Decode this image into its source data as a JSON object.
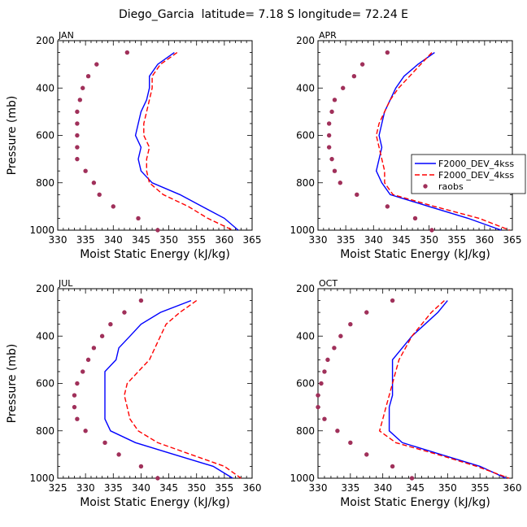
{
  "figure": {
    "title": "Diego_Garcia  latitude= 7.18 S longitude= 72.24 E"
  },
  "colors": {
    "model1": "#0000ff",
    "model2": "#ff0000",
    "raobs": "#a0305a"
  },
  "legend": {
    "panel": "APR",
    "entries": [
      "F2000_DEV_4kss",
      "F2000_DEV_4kss",
      "raobs"
    ]
  },
  "chart_data": [
    {
      "type": "line",
      "title": "JAN",
      "xlabel": "Moist Static Energy (kJ/kg)",
      "ylabel": "Pressure (mb)",
      "xlim": [
        330,
        365
      ],
      "ylim": [
        1000,
        200
      ],
      "xticks": [
        330,
        335,
        340,
        345,
        350,
        355,
        360,
        365
      ],
      "yticks": [
        200,
        400,
        600,
        800,
        1000
      ],
      "series": [
        {
          "name": "F2000_DEV_4kss",
          "style": "solid",
          "x": [
            351,
            348,
            346.5,
            346.5,
            346,
            345,
            344.5,
            344,
            345,
            344.5,
            345,
            347,
            352,
            356,
            360,
            362.5
          ],
          "y": [
            250,
            300,
            350,
            400,
            450,
            500,
            550,
            600,
            650,
            700,
            750,
            800,
            850,
            900,
            950,
            1000
          ]
        },
        {
          "name": "F2000_DEV_4kss",
          "style": "dashed",
          "x": [
            351.5,
            348.5,
            347,
            347,
            346.5,
            346,
            345.5,
            345.5,
            346.5,
            346,
            346,
            346.5,
            349,
            353.5,
            357,
            361.5
          ],
          "y": [
            250,
            300,
            350,
            400,
            450,
            500,
            550,
            600,
            650,
            700,
            750,
            800,
            850,
            900,
            950,
            1000
          ]
        },
        {
          "name": "raobs",
          "style": "markers",
          "x": [
            342.5,
            337,
            335.5,
            334.5,
            334,
            333.5,
            333.5,
            333.5,
            333.5,
            333.5,
            335,
            336.5,
            337.5,
            340,
            344.5,
            348
          ],
          "y": [
            250,
            300,
            350,
            400,
            450,
            500,
            550,
            600,
            650,
            700,
            750,
            800,
            850,
            900,
            950,
            1000
          ]
        }
      ]
    },
    {
      "type": "line",
      "title": "APR",
      "xlabel": "Moist Static Energy (kJ/kg)",
      "ylabel": "",
      "xlim": [
        330,
        365
      ],
      "ylim": [
        1000,
        200
      ],
      "xticks": [
        330,
        335,
        340,
        345,
        350,
        355,
        360,
        365
      ],
      "yticks": [
        200,
        400,
        600,
        800,
        1000
      ],
      "series": [
        {
          "name": "F2000_DEV_4kss",
          "style": "solid",
          "x": [
            351,
            348,
            345.5,
            344,
            343,
            342,
            341.5,
            341,
            341.5,
            341,
            340.5,
            341.5,
            343,
            350,
            357,
            363
          ],
          "y": [
            250,
            300,
            350,
            400,
            450,
            500,
            550,
            600,
            650,
            700,
            750,
            800,
            850,
            900,
            950,
            1000
          ]
        },
        {
          "name": "F2000_DEV_4kss",
          "style": "dashed",
          "x": [
            350.5,
            348.5,
            346.5,
            344.5,
            343,
            342,
            341,
            340.5,
            341,
            341.5,
            342,
            342,
            343.5,
            351,
            359,
            364.5
          ],
          "y": [
            250,
            300,
            350,
            400,
            450,
            500,
            550,
            600,
            650,
            700,
            750,
            800,
            850,
            900,
            950,
            1000
          ]
        },
        {
          "name": "raobs",
          "style": "markers",
          "x": [
            342.5,
            338,
            336.5,
            334.5,
            333,
            332.5,
            332,
            332,
            332,
            332.5,
            333,
            334,
            337,
            342.5,
            347.5,
            350.5
          ],
          "y": [
            250,
            300,
            350,
            400,
            450,
            500,
            550,
            600,
            650,
            700,
            750,
            800,
            850,
            900,
            950,
            1000
          ]
        }
      ]
    },
    {
      "type": "line",
      "title": "JUL",
      "xlabel": "Moist Static Energy (kJ/kg)",
      "ylabel": "Pressure (mb)",
      "xlim": [
        325,
        360
      ],
      "ylim": [
        1000,
        200
      ],
      "xticks": [
        325,
        330,
        335,
        340,
        345,
        350,
        355,
        360
      ],
      "yticks": [
        200,
        400,
        600,
        800,
        1000
      ],
      "series": [
        {
          "name": "F2000_DEV_4kss",
          "style": "solid",
          "x": [
            349,
            343.5,
            340,
            338,
            336,
            335.5,
            333.5,
            333.5,
            333.5,
            333.5,
            333.5,
            334.5,
            339,
            346,
            353,
            356.5
          ],
          "y": [
            250,
            300,
            350,
            400,
            450,
            500,
            550,
            600,
            650,
            700,
            750,
            800,
            850,
            900,
            950,
            1000
          ]
        },
        {
          "name": "F2000_DEV_4kss",
          "style": "dashed",
          "x": [
            350,
            347,
            344.5,
            343.5,
            342.5,
            341.5,
            339.5,
            337.5,
            337,
            337.5,
            338,
            339.5,
            343,
            349,
            355,
            358
          ],
          "y": [
            250,
            300,
            350,
            400,
            450,
            500,
            550,
            600,
            650,
            700,
            750,
            800,
            850,
            900,
            950,
            1000
          ]
        },
        {
          "name": "raobs",
          "style": "markers",
          "x": [
            340,
            337,
            334.5,
            333,
            331.5,
            330.5,
            329.5,
            328.5,
            328,
            328,
            328.5,
            330,
            333.5,
            336,
            340,
            343
          ],
          "y": [
            250,
            300,
            350,
            400,
            450,
            500,
            550,
            600,
            650,
            700,
            750,
            800,
            850,
            900,
            950,
            1000
          ]
        }
      ]
    },
    {
      "type": "line",
      "title": "OCT",
      "xlabel": "Moist Static Energy (kJ/kg)",
      "ylabel": "",
      "xlim": [
        330,
        360
      ],
      "ylim": [
        1000,
        200
      ],
      "xticks": [
        330,
        335,
        340,
        345,
        350,
        355,
        360
      ],
      "yticks": [
        200,
        400,
        600,
        800,
        1000
      ],
      "series": [
        {
          "name": "F2000_DEV_4kss",
          "style": "solid",
          "x": [
            350,
            348.5,
            346.5,
            344.5,
            343,
            341.5,
            341.5,
            341.5,
            341.5,
            341,
            341,
            341,
            343,
            349,
            355,
            359
          ],
          "y": [
            250,
            300,
            350,
            400,
            450,
            500,
            550,
            600,
            650,
            700,
            750,
            800,
            850,
            900,
            950,
            1000
          ]
        },
        {
          "name": "F2000_DEV_4kss",
          "style": "dashed",
          "x": [
            349.5,
            347.5,
            346,
            344.5,
            343.5,
            342.5,
            342,
            341.5,
            341,
            340.5,
            340,
            339.5,
            342,
            348.5,
            354.5,
            359.5
          ],
          "y": [
            250,
            300,
            350,
            400,
            450,
            500,
            550,
            600,
            650,
            700,
            750,
            800,
            850,
            900,
            950,
            1000
          ]
        },
        {
          "name": "raobs",
          "style": "markers",
          "x": [
            341.5,
            337.5,
            335,
            333.5,
            332.5,
            331.5,
            331,
            330.5,
            330,
            330,
            331,
            333,
            335,
            337.5,
            341.5,
            344.5
          ],
          "y": [
            250,
            300,
            350,
            400,
            450,
            500,
            550,
            600,
            650,
            700,
            750,
            800,
            850,
            900,
            950,
            1000
          ]
        }
      ]
    }
  ]
}
